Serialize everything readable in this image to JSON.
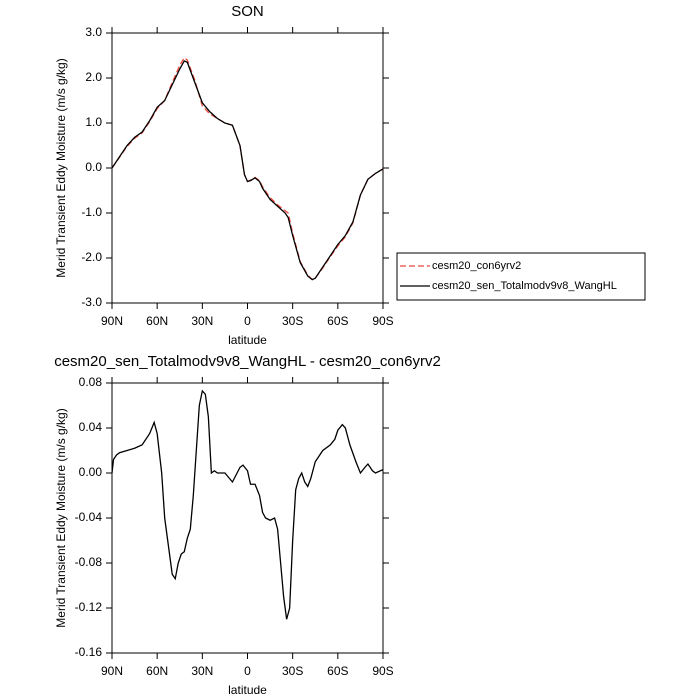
{
  "chart_data": [
    {
      "type": "line",
      "title": "SON",
      "xlabel": "latitude",
      "ylabel": "Merid Transient Eddy Moisture (m/s g/kg)",
      "xlim": [
        90,
        -90
      ],
      "ylim": [
        -3.0,
        3.0
      ],
      "xticks": [
        {
          "value": 90,
          "label": "90N"
        },
        {
          "value": 60,
          "label": "60N"
        },
        {
          "value": 30,
          "label": "30N"
        },
        0,
        {
          "value": -30,
          "label": "30S"
        },
        {
          "value": -60,
          "label": "60S"
        },
        {
          "value": -90,
          "label": "90S"
        }
      ],
      "yticks": [
        {
          "value": -3,
          "label": "-3.0"
        },
        {
          "value": -2,
          "label": "-2.0"
        },
        {
          "value": -1,
          "label": "-1.0"
        },
        {
          "value": 0,
          "label": "0.0"
        },
        {
          "value": 1,
          "label": "1.0"
        },
        {
          "value": 2,
          "label": "2.0"
        },
        {
          "value": 3,
          "label": "3.0"
        }
      ],
      "legend": "right",
      "x": [
        90,
        85,
        80,
        75,
        70,
        65,
        60,
        55,
        50,
        45,
        42,
        40,
        35,
        30,
        25,
        20,
        15,
        10,
        5,
        2,
        0,
        -2,
        -5,
        -8,
        -10,
        -15,
        -20,
        -25,
        -27,
        -30,
        -35,
        -40,
        -43,
        -45,
        -50,
        -55,
        -60,
        -65,
        -70,
        -75,
        -80,
        -85,
        -90
      ],
      "series": [
        {
          "name": "cesm20_con6yrv2",
          "color": "#e8483c",
          "dashed": true,
          "values": [
            0.0,
            0.24,
            0.48,
            0.66,
            0.78,
            1.03,
            1.32,
            1.5,
            1.9,
            2.28,
            2.45,
            2.4,
            1.95,
            1.38,
            1.2,
            1.1,
            1.0,
            0.95,
            0.5,
            -0.15,
            -0.3,
            -0.27,
            -0.21,
            -0.28,
            -0.42,
            -0.66,
            -0.82,
            -0.95,
            -1.0,
            -1.45,
            -2.08,
            -2.38,
            -2.48,
            -2.45,
            -2.22,
            -1.97,
            -1.73,
            -1.53,
            -1.22,
            -0.6,
            -0.25,
            -0.12,
            -0.02
          ]
        },
        {
          "name": "cesm20_sen_Totalmodv9v8_WangHL",
          "color": "#000000",
          "dashed": false,
          "values": [
            0.0,
            0.25,
            0.5,
            0.68,
            0.8,
            1.05,
            1.35,
            1.5,
            1.85,
            2.2,
            2.38,
            2.35,
            1.9,
            1.45,
            1.25,
            1.1,
            1.0,
            0.95,
            0.5,
            -0.15,
            -0.3,
            -0.28,
            -0.22,
            -0.3,
            -0.45,
            -0.7,
            -0.85,
            -1.0,
            -1.1,
            -1.5,
            -2.1,
            -2.4,
            -2.48,
            -2.45,
            -2.2,
            -1.95,
            -1.7,
            -1.5,
            -1.2,
            -0.6,
            -0.25,
            -0.12,
            -0.02
          ]
        }
      ]
    },
    {
      "type": "line",
      "title": "cesm20_sen_Totalmodv9v8_WangHL - cesm20_con6yrv2",
      "xlabel": "latitude",
      "ylabel": "Merid Transient Eddy Moisture (m/s g/kg)",
      "xlim": [
        90,
        -90
      ],
      "ylim": [
        -0.16,
        0.08
      ],
      "xticks": [
        {
          "value": 90,
          "label": "90N"
        },
        {
          "value": 60,
          "label": "60N"
        },
        {
          "value": 30,
          "label": "30N"
        },
        0,
        {
          "value": -30,
          "label": "30S"
        },
        {
          "value": -60,
          "label": "60S"
        },
        {
          "value": -90,
          "label": "90S"
        }
      ],
      "yticks": [
        -0.16,
        -0.12,
        -0.08,
        -0.04,
        {
          "value": 0,
          "label": "0.00"
        },
        0.04,
        0.08
      ],
      "x": [
        90,
        89,
        87,
        85,
        80,
        75,
        70,
        65,
        62,
        60,
        57,
        55,
        52,
        50,
        48,
        46,
        44,
        42,
        40,
        38,
        36,
        34,
        32,
        30,
        28,
        26,
        24,
        22,
        20,
        15,
        10,
        5,
        3,
        0,
        -2,
        -5,
        -8,
        -10,
        -12,
        -15,
        -18,
        -20,
        -22,
        -24,
        -26,
        -28,
        -30,
        -32,
        -34,
        -36,
        -38,
        -40,
        -42,
        -45,
        -50,
        -55,
        -58,
        -60,
        -63,
        -65,
        -68,
        -72,
        -75,
        -78,
        -80,
        -83,
        -85,
        -90
      ],
      "series": [
        {
          "color": "#000000",
          "dashed": false,
          "values": [
            0.0,
            0.012,
            0.016,
            0.018,
            0.02,
            0.022,
            0.025,
            0.035,
            0.045,
            0.035,
            0.0,
            -0.04,
            -0.07,
            -0.09,
            -0.094,
            -0.08,
            -0.072,
            -0.07,
            -0.058,
            -0.05,
            -0.02,
            0.02,
            0.06,
            0.073,
            0.07,
            0.05,
            0.0,
            0.002,
            0.0,
            0.0,
            -0.008,
            0.005,
            0.007,
            0.002,
            -0.01,
            -0.01,
            -0.02,
            -0.035,
            -0.04,
            -0.042,
            -0.04,
            -0.05,
            -0.08,
            -0.11,
            -0.13,
            -0.12,
            -0.06,
            -0.015,
            -0.005,
            0.0,
            -0.008,
            -0.012,
            -0.005,
            0.01,
            0.02,
            0.025,
            0.03,
            0.038,
            0.043,
            0.04,
            0.025,
            0.01,
            0.0,
            0.005,
            0.008,
            0.002,
            0.0,
            0.003
          ]
        }
      ]
    }
  ]
}
